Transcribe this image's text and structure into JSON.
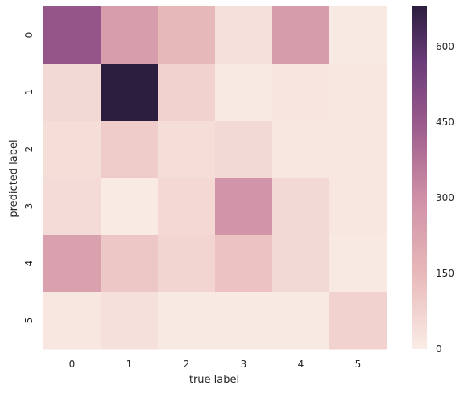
{
  "chart_data": {
    "type": "heatmap",
    "title": "",
    "xlabel": "true label",
    "ylabel": "predicted label",
    "x_categories": [
      "0",
      "1",
      "2",
      "3",
      "4",
      "5"
    ],
    "y_categories": [
      "0",
      "1",
      "2",
      "3",
      "4",
      "5"
    ],
    "values": [
      [
        465,
        250,
        155,
        35,
        255,
        10
      ],
      [
        55,
        680,
        75,
        10,
        20,
        15
      ],
      [
        45,
        95,
        45,
        55,
        15,
        15
      ],
      [
        50,
        5,
        60,
        285,
        55,
        15
      ],
      [
        240,
        110,
        70,
        120,
        55,
        10
      ],
      [
        15,
        35,
        10,
        10,
        10,
        75
      ]
    ],
    "colorbar": {
      "range": [
        0,
        680
      ],
      "ticks": [
        0,
        150,
        300,
        450,
        600
      ],
      "colors": [
        "#faece6",
        "#e8b9b9",
        "#cf90a7",
        "#9a5a8b",
        "#6a3c79",
        "#2c1e3f"
      ]
    },
    "grid": false
  }
}
